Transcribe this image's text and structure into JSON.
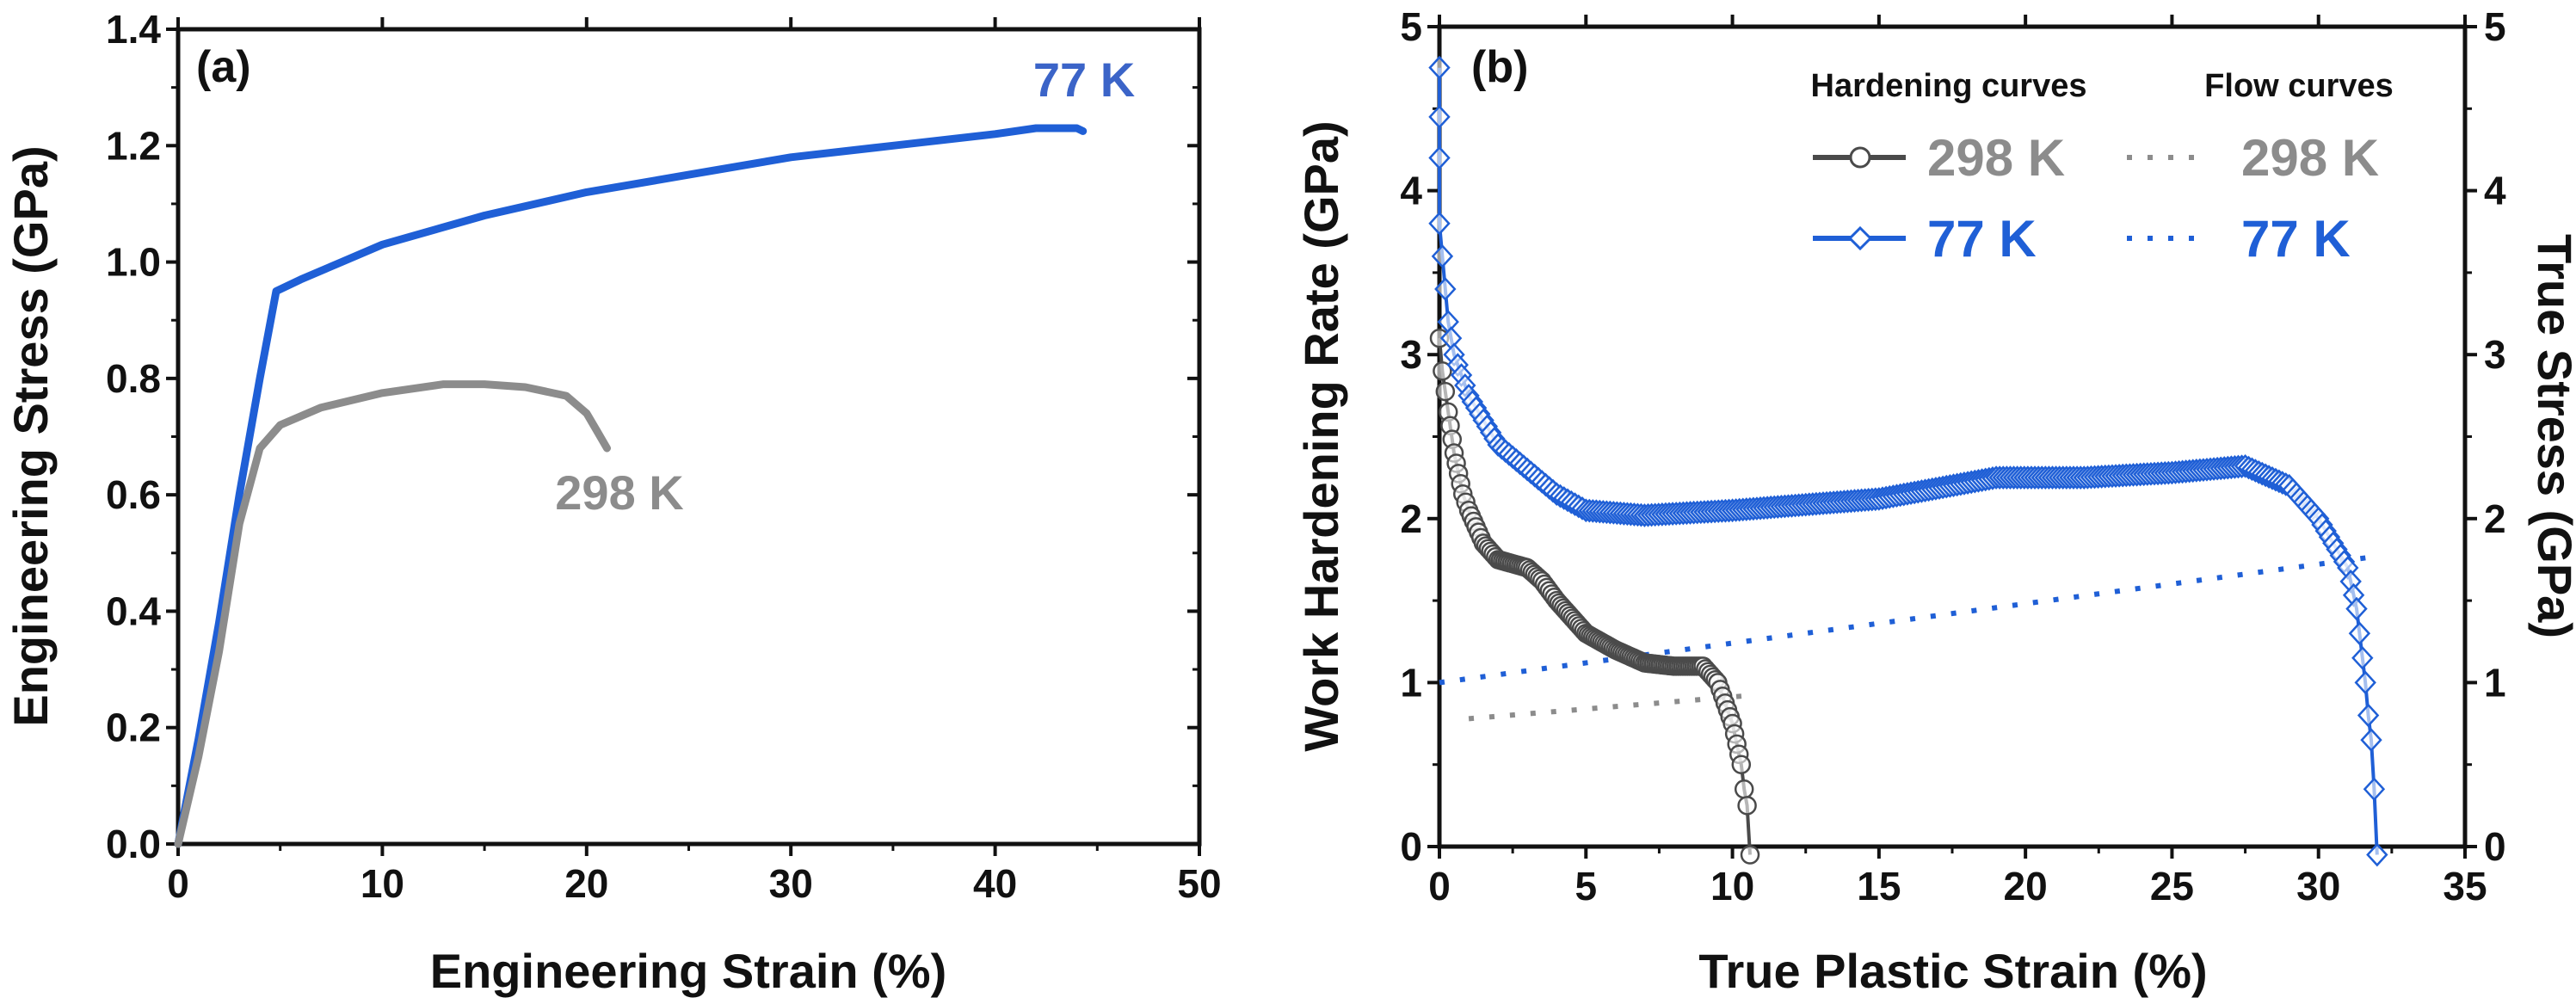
{
  "colors": {
    "blue": "#1f5fd6",
    "gray": "#8c8c8c",
    "dark": "#4a4a4a",
    "axis": "#111111"
  },
  "chart_data": [
    {
      "type": "line",
      "panel_label": "(a)",
      "xlabel": "Engineering Strain (%)",
      "ylabel": "Engineering Stress (GPa)",
      "xlim": [
        0,
        50
      ],
      "ylim": [
        0,
        1.4
      ],
      "xticks": [
        "0",
        "10",
        "20",
        "30",
        "40",
        "50"
      ],
      "yticks": [
        "0.0",
        "0.2",
        "0.4",
        "0.6",
        "0.8",
        "1.0",
        "1.2",
        "1.4"
      ],
      "series": [
        {
          "name": "77 K",
          "color": "#1f5fd6",
          "x": [
            0,
            1,
            2,
            3,
            4,
            4.8,
            6,
            8,
            10,
            15,
            20,
            25,
            30,
            35,
            40,
            42,
            44,
            44.3
          ],
          "y": [
            0,
            0.18,
            0.38,
            0.6,
            0.8,
            0.95,
            0.97,
            1.0,
            1.03,
            1.08,
            1.12,
            1.15,
            1.18,
            1.2,
            1.22,
            1.23,
            1.23,
            1.225
          ]
        },
        {
          "name": "298 K",
          "color": "#8c8c8c",
          "x": [
            0,
            1,
            2,
            3,
            4,
            5,
            7,
            10,
            13,
            15,
            17,
            19,
            20,
            20.5,
            21
          ],
          "y": [
            0,
            0.15,
            0.33,
            0.55,
            0.68,
            0.72,
            0.75,
            0.775,
            0.79,
            0.79,
            0.785,
            0.77,
            0.74,
            0.71,
            0.68
          ]
        }
      ]
    },
    {
      "type": "scatter",
      "panel_label": "(b)",
      "xlabel": "True Plastic Strain (%)",
      "ylabel": "Work Hardening Rate (GPa)",
      "ylabel_right": "True Stress (GPa)",
      "xlim": [
        0,
        35
      ],
      "ylim": [
        0,
        5
      ],
      "ylim_right": [
        0,
        5
      ],
      "xticks": [
        "0",
        "5",
        "10",
        "15",
        "20",
        "25",
        "30",
        "35"
      ],
      "yticks": [
        "0",
        "1",
        "2",
        "3",
        "4",
        "5"
      ],
      "legend": {
        "position": "top-right",
        "col_headers": [
          "Hardening curves",
          "Flow curves"
        ]
      },
      "series": [
        {
          "name": "298 K",
          "kind": "hardening",
          "marker": "circle",
          "color": "#4a4a4a",
          "x": [
            0,
            0.1,
            0.3,
            0.5,
            0.8,
            1,
            1.5,
            2,
            3,
            3.5,
            4,
            5,
            6,
            7,
            8,
            9,
            9.5,
            10,
            10.3,
            10.4,
            10.5,
            10.6
          ],
          "y": [
            3.1,
            2.9,
            2.65,
            2.4,
            2.15,
            2.05,
            1.85,
            1.75,
            1.7,
            1.62,
            1.5,
            1.3,
            1.2,
            1.12,
            1.1,
            1.1,
            1.0,
            0.75,
            0.5,
            0.35,
            0.25,
            -0.05
          ]
        },
        {
          "name": "77 K",
          "kind": "hardening",
          "marker": "diamond",
          "color": "#1f5fd6",
          "x": [
            0,
            0,
            0,
            0,
            0.3,
            0.5,
            1,
            2,
            3,
            4,
            5,
            7,
            10,
            15,
            19,
            22,
            25,
            27.5,
            29,
            30,
            31,
            31.3,
            31.4,
            31.6,
            31.7,
            31.8,
            31.9,
            32
          ],
          "y": [
            4.75,
            4.45,
            4.2,
            3.8,
            3.2,
            3.0,
            2.75,
            2.45,
            2.3,
            2.15,
            2.05,
            2.02,
            2.05,
            2.12,
            2.25,
            2.25,
            2.28,
            2.32,
            2.2,
            2.0,
            1.7,
            1.45,
            1.3,
            1.0,
            0.8,
            0.65,
            0.35,
            -0.05
          ]
        },
        {
          "name": "298 K",
          "kind": "flow",
          "style": "dotted",
          "color": "#8c8c8c",
          "x": [
            1,
            10.5
          ],
          "y": [
            0.78,
            0.92
          ]
        },
        {
          "name": "77 K",
          "kind": "flow",
          "style": "dotted",
          "color": "#1f5fd6",
          "x": [
            0,
            32
          ],
          "y": [
            1.0,
            1.77
          ]
        }
      ]
    }
  ]
}
